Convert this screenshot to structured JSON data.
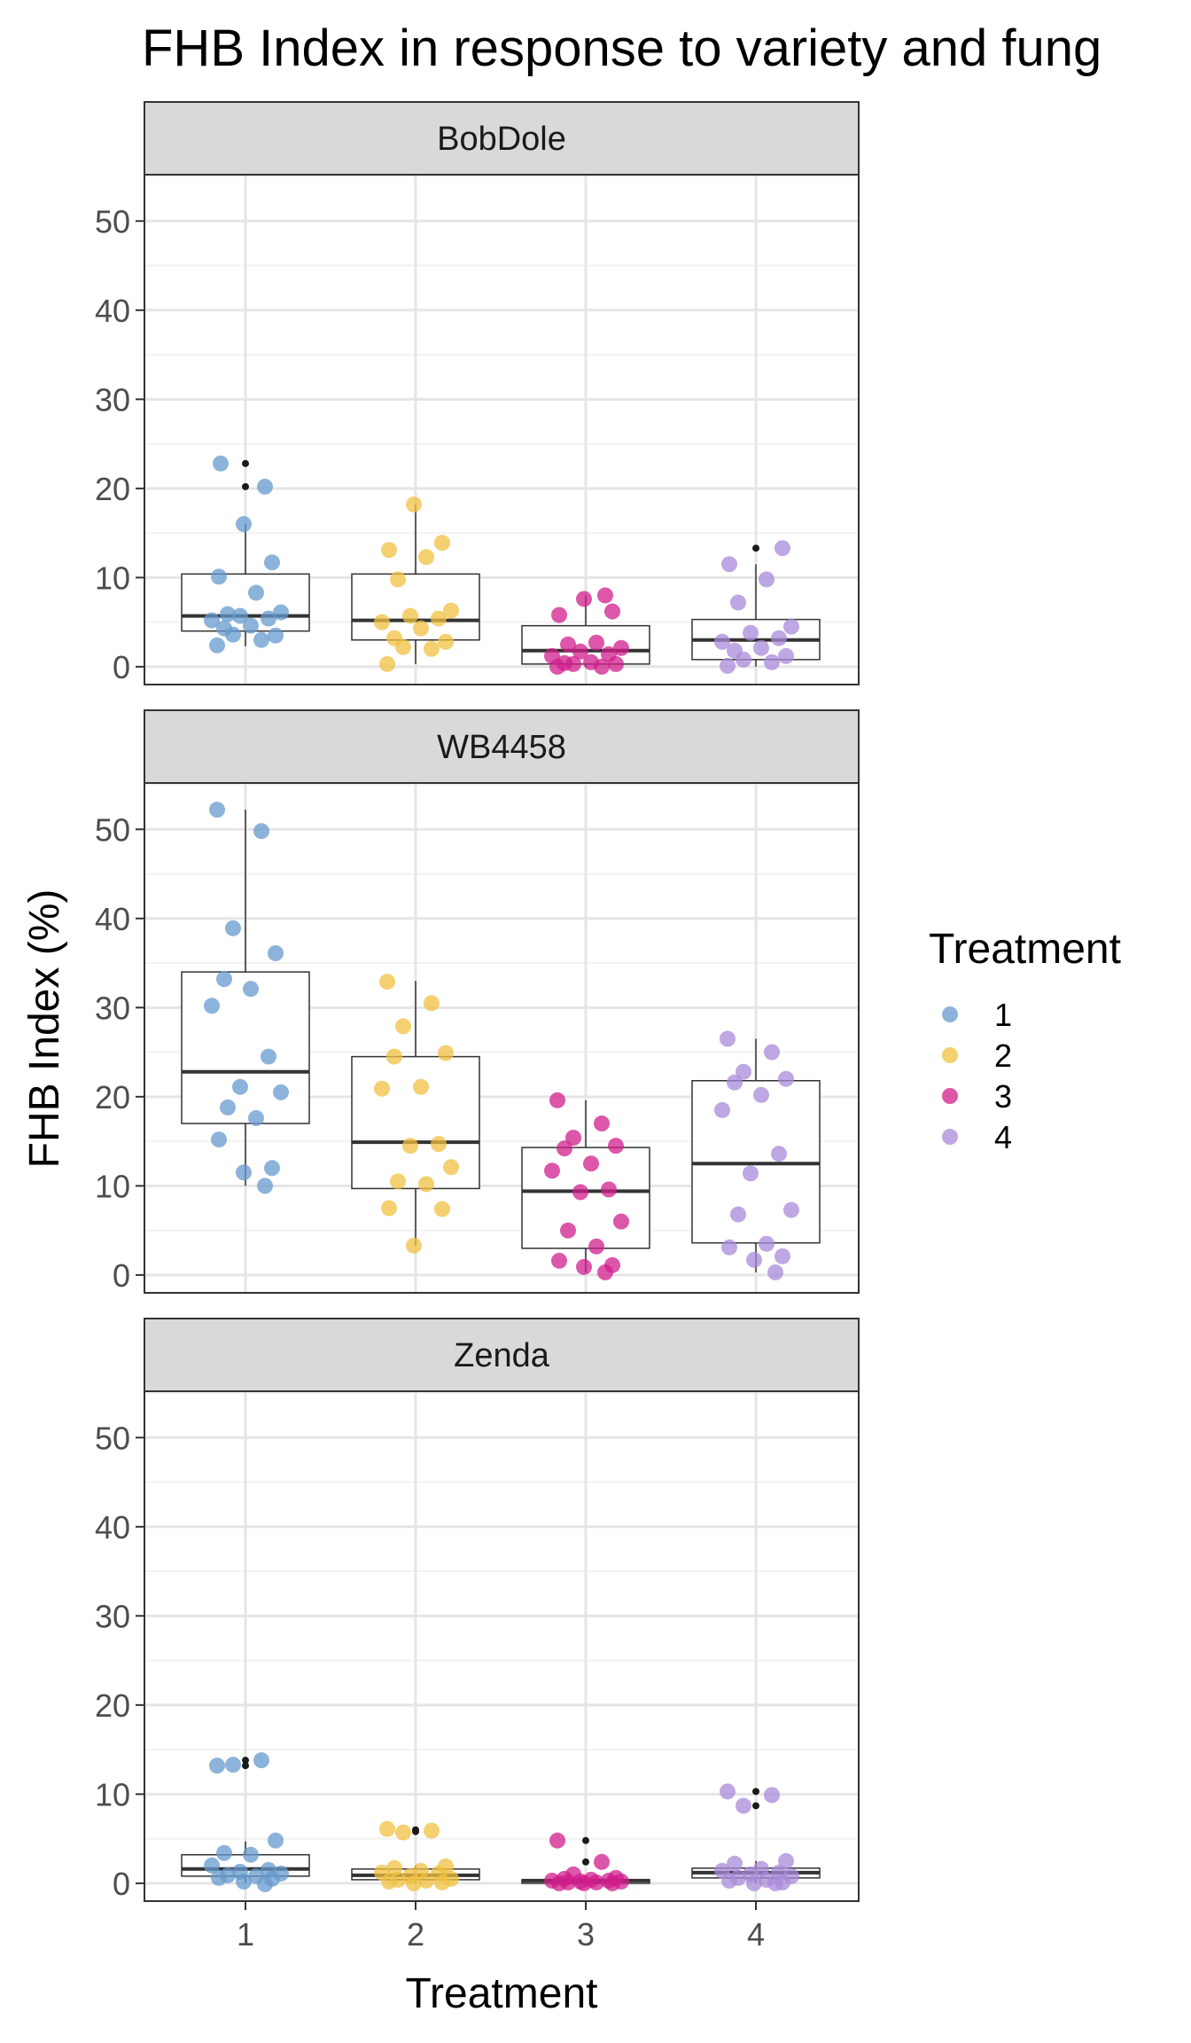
{
  "chart_data": {
    "type": "box",
    "title": "FHB Index in response to variety and fung",
    "xlabel": "Treatment",
    "ylabel": "FHB Index (%)",
    "categories": [
      "1",
      "2",
      "3",
      "4"
    ],
    "y_ticks": [
      0,
      10,
      20,
      30,
      40,
      50
    ],
    "ylim": [
      -2,
      55.2
    ],
    "grid": true,
    "legend": {
      "title": "Treatment",
      "position": "right",
      "items": [
        {
          "label": "1",
          "color": "#6699CC"
        },
        {
          "label": "2",
          "color": "#F0C040"
        },
        {
          "label": "3",
          "color": "#D01E8C"
        },
        {
          "label": "4",
          "color": "#A88AD8"
        }
      ]
    },
    "panels": [
      {
        "name": "BobDole",
        "boxes": [
          {
            "q1": 4.0,
            "median": 5.7,
            "q3": 10.4,
            "whisker_low": 2.3,
            "whisker_high": 16.0,
            "outliers": [
              20.2,
              22.8
            ]
          },
          {
            "q1": 3.0,
            "median": 5.2,
            "q3": 10.4,
            "whisker_low": 0.3,
            "whisker_high": 18.2,
            "outliers": []
          },
          {
            "q1": 0.3,
            "median": 1.8,
            "q3": 4.6,
            "whisker_low": 0.0,
            "whisker_high": 8.0,
            "outliers": []
          },
          {
            "q1": 0.8,
            "median": 3.0,
            "q3": 5.3,
            "whisker_low": 0.0,
            "whisker_high": 11.5,
            "outliers": [
              13.3
            ]
          }
        ],
        "points": [
          [
            2.4,
            3.0,
            3.6,
            3.5,
            4.3,
            4.6,
            5.2,
            5.4,
            5.7,
            6.1,
            5.9,
            8.3,
            10.1,
            11.7,
            16.0,
            20.2,
            22.8
          ],
          [
            0.3,
            2.0,
            2.2,
            2.8,
            3.2,
            4.3,
            5.0,
            5.4,
            5.7,
            6.3,
            9.8,
            12.3,
            13.1,
            13.9,
            18.2
          ],
          [
            0.0,
            0.0,
            0.3,
            0.3,
            0.4,
            0.5,
            1.2,
            1.4,
            1.7,
            2.1,
            2.5,
            2.7,
            5.8,
            6.2,
            7.6,
            8.0
          ],
          [
            0.1,
            0.5,
            0.8,
            1.2,
            1.8,
            2.1,
            2.8,
            3.2,
            3.8,
            4.5,
            7.2,
            9.8,
            11.5,
            13.3
          ]
        ]
      },
      {
        "name": "WB4458",
        "boxes": [
          {
            "q1": 17.0,
            "median": 22.8,
            "q3": 34.0,
            "whisker_low": 10.0,
            "whisker_high": 52.2,
            "outliers": []
          },
          {
            "q1": 9.7,
            "median": 14.9,
            "q3": 24.5,
            "whisker_low": 3.3,
            "whisker_high": 33.0,
            "outliers": []
          },
          {
            "q1": 3.0,
            "median": 9.4,
            "q3": 14.3,
            "whisker_low": 0.3,
            "whisker_high": 19.6,
            "outliers": []
          },
          {
            "q1": 3.6,
            "median": 12.5,
            "q3": 21.8,
            "whisker_low": 0.3,
            "whisker_high": 26.5,
            "outliers": []
          }
        ],
        "points": [
          [
            52.2,
            49.8,
            38.9,
            36.1,
            33.2,
            32.1,
            30.2,
            24.5,
            21.1,
            20.5,
            18.8,
            17.6,
            15.2,
            12.0,
            11.5,
            10.0
          ],
          [
            32.9,
            30.5,
            27.9,
            24.9,
            24.5,
            21.1,
            20.9,
            14.7,
            14.5,
            12.1,
            10.5,
            10.2,
            7.5,
            7.4,
            3.3
          ],
          [
            19.6,
            17.0,
            15.4,
            14.5,
            14.2,
            12.5,
            11.7,
            9.6,
            9.3,
            6.0,
            5.0,
            3.2,
            1.6,
            1.1,
            0.9,
            0.3
          ],
          [
            26.5,
            25.0,
            22.8,
            22.0,
            21.6,
            20.2,
            18.5,
            13.6,
            11.4,
            7.3,
            6.8,
            3.5,
            3.1,
            2.1,
            1.7,
            0.3
          ]
        ]
      },
      {
        "name": "Zenda",
        "boxes": [
          {
            "q1": 0.8,
            "median": 1.6,
            "q3": 3.2,
            "whisker_low": 0.0,
            "whisker_high": 4.7,
            "outliers": [
              13.2,
              13.8
            ]
          },
          {
            "q1": 0.4,
            "median": 0.9,
            "q3": 1.6,
            "whisker_low": 0.0,
            "whisker_high": 2.0,
            "outliers": [
              5.8,
              6.0
            ]
          },
          {
            "q1": 0.0,
            "median": 0.3,
            "q3": 0.4,
            "whisker_low": 0.0,
            "whisker_high": 0.8,
            "outliers": [
              2.4,
              4.8
            ]
          },
          {
            "q1": 0.6,
            "median": 1.2,
            "q3": 1.7,
            "whisker_low": 0.0,
            "whisker_high": 2.5,
            "outliers": [
              8.7,
              10.3
            ]
          }
        ],
        "points": [
          [
            13.2,
            13.8,
            13.3,
            4.8,
            3.4,
            3.2,
            2.0,
            1.5,
            1.3,
            1.1,
            0.9,
            0.8,
            0.6,
            0.5,
            0.2,
            -0.1
          ],
          [
            6.1,
            5.9,
            5.7,
            1.9,
            1.7,
            1.4,
            1.2,
            1.1,
            0.8,
            0.5,
            0.4,
            0.3,
            0.2,
            0.1,
            0.0
          ],
          [
            4.8,
            2.4,
            1.0,
            0.6,
            0.5,
            0.4,
            0.3,
            0.3,
            0.2,
            0.2,
            0.1,
            0.1,
            0.0,
            0.0,
            0.0
          ],
          [
            10.3,
            9.9,
            8.7,
            2.5,
            2.2,
            1.6,
            1.4,
            1.2,
            1.0,
            0.8,
            0.6,
            0.4,
            0.3,
            0.1,
            0.0,
            0.0
          ]
        ]
      }
    ]
  }
}
